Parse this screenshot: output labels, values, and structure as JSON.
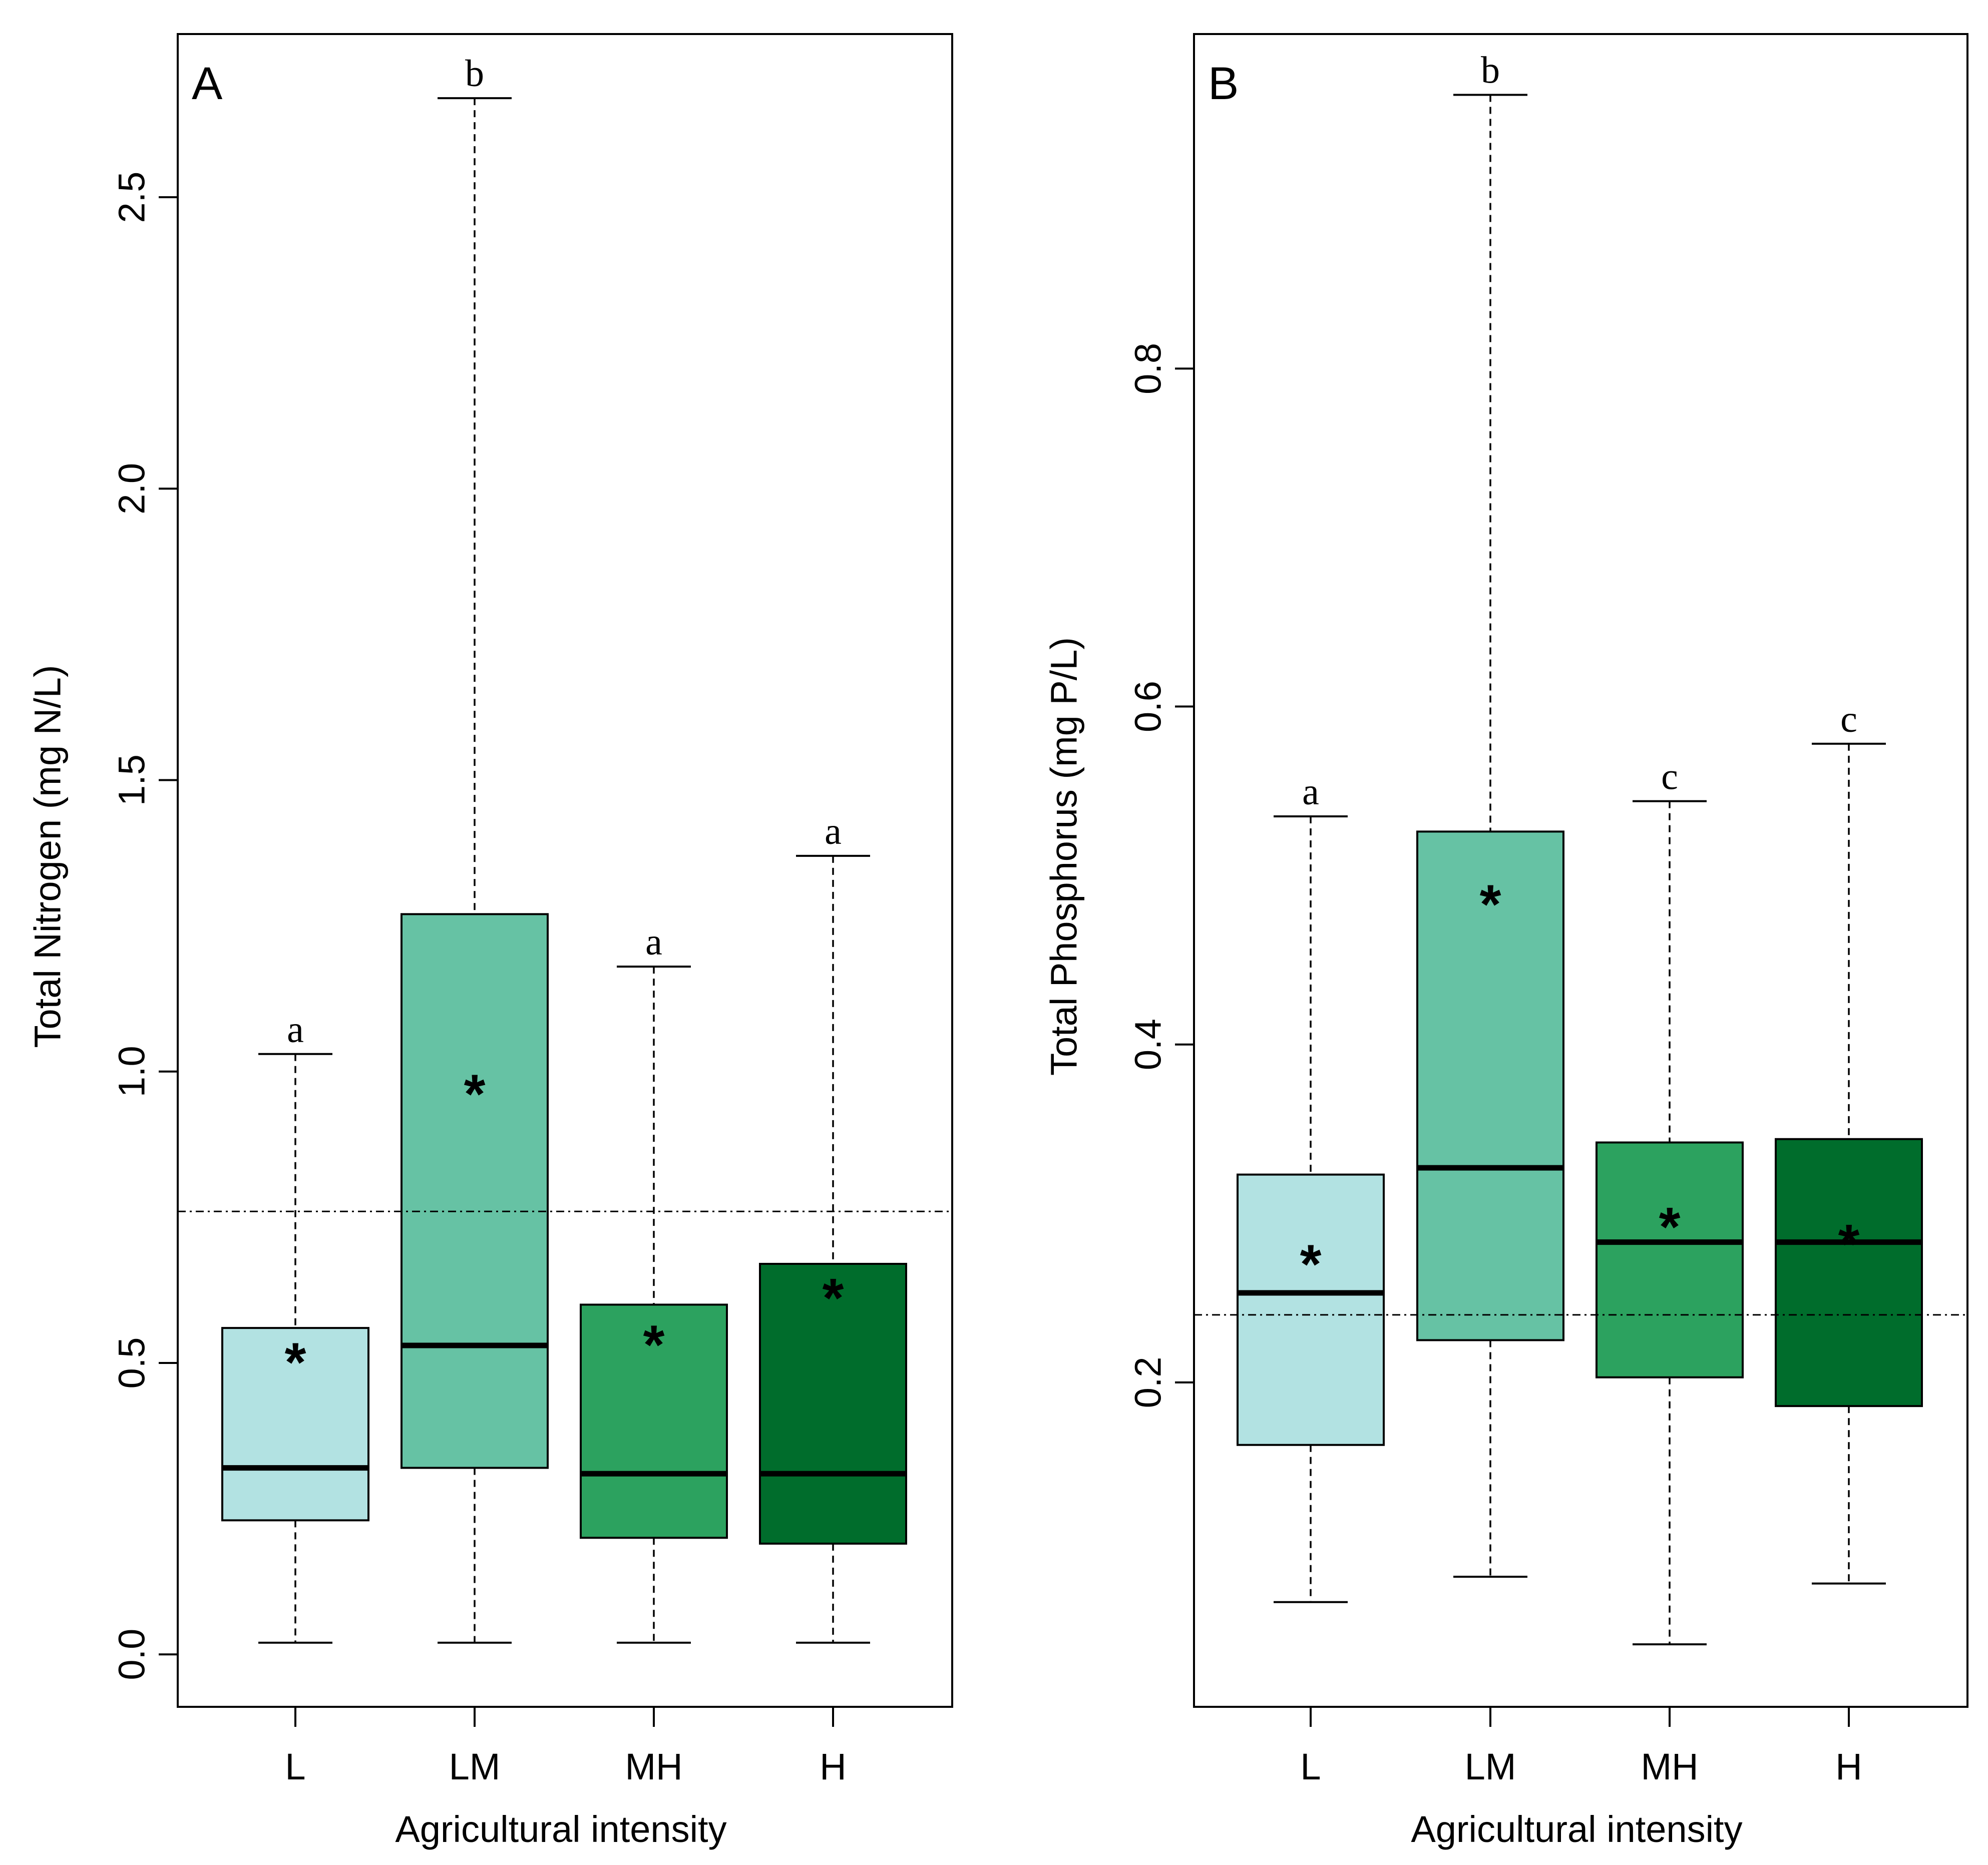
{
  "chart_data": [
    {
      "type": "boxplot",
      "panel_label": "A",
      "xlabel": "Agricultural intensity",
      "ylabel": "Total Nitrogen (mg N/L)",
      "ylim": [
        -0.09,
        2.78
      ],
      "yticks": [
        0.0,
        0.5,
        1.0,
        1.5,
        2.0,
        2.5
      ],
      "ytick_labels": [
        "0.0",
        "0.5",
        "1.0",
        "1.5",
        "2.0",
        "2.5"
      ],
      "reference_line": 0.76,
      "categories": [
        "L",
        "LM",
        "MH",
        "H"
      ],
      "boxes": [
        {
          "category": "L",
          "whisker_low": 0.02,
          "q1": 0.23,
          "median": 0.32,
          "q3": 0.56,
          "whisker_high": 1.03,
          "mean": 0.51,
          "letter": "a",
          "color": "#b2e2e2"
        },
        {
          "category": "LM",
          "whisker_low": 0.02,
          "q1": 0.32,
          "median": 0.53,
          "q3": 1.27,
          "whisker_high": 2.67,
          "mean": 0.97,
          "letter": "b",
          "color": "#66c2a4"
        },
        {
          "category": "MH",
          "whisker_low": 0.02,
          "q1": 0.2,
          "median": 0.31,
          "q3": 0.6,
          "whisker_high": 1.18,
          "mean": 0.54,
          "letter": "a",
          "color": "#2ca25f"
        },
        {
          "category": "H",
          "whisker_low": 0.02,
          "q1": 0.19,
          "median": 0.31,
          "q3": 0.67,
          "whisker_high": 1.37,
          "mean": 0.62,
          "letter": "a",
          "color": "#006d2c"
        }
      ]
    },
    {
      "type": "boxplot",
      "panel_label": "B",
      "xlabel": "Agricultural intensity",
      "ylabel": "Total Phosphorus (mg P/L)",
      "ylim": [
        0.008,
        0.998
      ],
      "yticks": [
        0.2,
        0.4,
        0.6,
        0.8
      ],
      "ytick_labels": [
        "0.2",
        "0.4",
        "0.6",
        "0.8"
      ],
      "reference_line": 0.24,
      "categories": [
        "L",
        "LM",
        "MH",
        "H"
      ],
      "boxes": [
        {
          "category": "L",
          "whisker_low": 0.07,
          "q1": 0.163,
          "median": 0.253,
          "q3": 0.323,
          "whisker_high": 0.535,
          "mean": 0.273,
          "letter": "a",
          "color": "#b2e2e2"
        },
        {
          "category": "LM",
          "whisker_low": 0.085,
          "q1": 0.225,
          "median": 0.327,
          "q3": 0.526,
          "whisker_high": 0.962,
          "mean": 0.486,
          "letter": "b",
          "color": "#66c2a4"
        },
        {
          "category": "MH",
          "whisker_low": 0.045,
          "q1": 0.203,
          "median": 0.283,
          "q3": 0.342,
          "whisker_high": 0.544,
          "mean": 0.295,
          "letter": "c",
          "color": "#2ca25f"
        },
        {
          "category": "H",
          "whisker_low": 0.081,
          "q1": 0.186,
          "median": 0.283,
          "q3": 0.344,
          "whisker_high": 0.578,
          "mean": 0.285,
          "letter": "c",
          "color": "#006d2c"
        }
      ]
    }
  ],
  "mean_symbol": "*"
}
